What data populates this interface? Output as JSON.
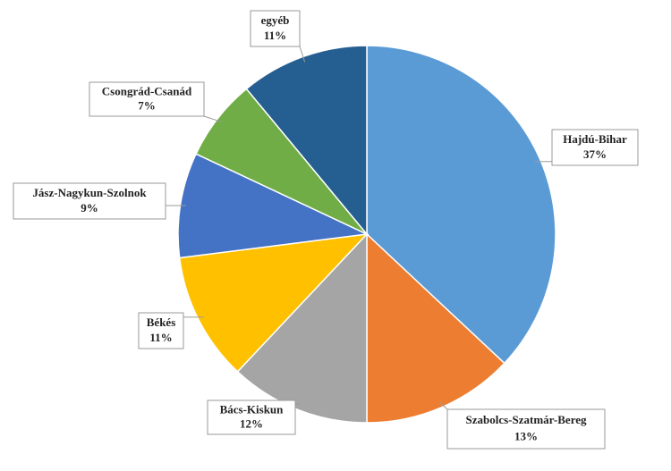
{
  "chart_data": {
    "type": "pie",
    "categories": [
      "Hajdú-Bihar",
      "Szabolcs-Szatmár-Bereg",
      "Bács-Kiskun",
      "Békés",
      "Jász-Nagykun-Szolnok",
      "Csongrád-Csanád",
      "egyéb"
    ],
    "values": [
      37,
      13,
      12,
      11,
      9,
      7,
      11
    ],
    "value_labels": [
      "37%",
      "13%",
      "12%",
      "11%",
      "9%",
      "7%",
      "11%"
    ],
    "colors": [
      "#5b9bd5",
      "#ed7d31",
      "#a5a5a5",
      "#ffc000",
      "#4472c4",
      "#70ad47",
      "#255e91"
    ]
  }
}
